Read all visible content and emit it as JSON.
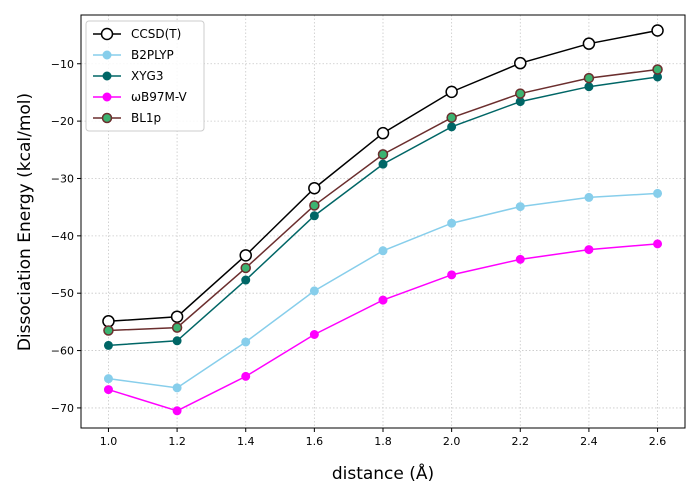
{
  "chart_data": {
    "type": "line",
    "title": "",
    "xlabel": "distance (Å)",
    "ylabel": "Dissociation Energy (kcal/mol)",
    "x": [
      1.0,
      1.2,
      1.4,
      1.6,
      1.8,
      2.0,
      2.2,
      2.4,
      2.6
    ],
    "x_tick_labels": [
      "1.0",
      "1.2",
      "1.4",
      "1.6",
      "1.8",
      "2.0",
      "2.2",
      "2.4",
      "2.6"
    ],
    "y_ticks": [
      -70,
      -60,
      -50,
      -40,
      -30,
      -20,
      -10
    ],
    "y_tick_labels": [
      "−70",
      "−60",
      "−50",
      "−40",
      "−30",
      "−20",
      "−10"
    ],
    "xlim": [
      0.92,
      2.68
    ],
    "ylim": [
      -73.5,
      -1.5
    ],
    "grid": true,
    "legend_position": "top-left",
    "series": [
      {
        "name": "CCSD(T)",
        "values": [
          -54.9,
          -54.1,
          -43.4,
          -31.7,
          -22.1,
          -14.9,
          -9.9,
          -6.5,
          -4.2
        ],
        "line_color": "#000000",
        "marker_face": "#ffffff",
        "marker_edge": "#000000",
        "marker_size": 11
      },
      {
        "name": "B2PLYP",
        "values": [
          -64.9,
          -66.5,
          -58.5,
          -49.6,
          -42.6,
          -37.8,
          -34.9,
          -33.3,
          -32.6
        ],
        "line_color": "#87ceeb",
        "marker_face": "#87ceeb",
        "marker_edge": "#87ceeb",
        "marker_size": 8
      },
      {
        "name": "XYG3",
        "values": [
          -59.1,
          -58.3,
          -47.7,
          -36.5,
          -27.5,
          -21.0,
          -16.6,
          -14.0,
          -12.3
        ],
        "line_color": "#006666",
        "marker_face": "#006666",
        "marker_edge": "#006666",
        "marker_size": 8
      },
      {
        "name": "ωB97M-V",
        "values": [
          -66.8,
          -70.5,
          -64.5,
          -57.2,
          -51.2,
          -46.8,
          -44.1,
          -42.4,
          -41.4
        ],
        "line_color": "#ff00ff",
        "marker_face": "#ff00ff",
        "marker_edge": "#ff00ff",
        "marker_size": 8
      },
      {
        "name": "BL1p",
        "values": [
          -56.5,
          -56.0,
          -45.6,
          -34.7,
          -25.8,
          -19.4,
          -15.2,
          -12.5,
          -11.0
        ],
        "line_color": "#6b2e2e",
        "marker_face": "#3cb371",
        "marker_edge": "#6b2e2e",
        "marker_size": 9
      }
    ]
  }
}
